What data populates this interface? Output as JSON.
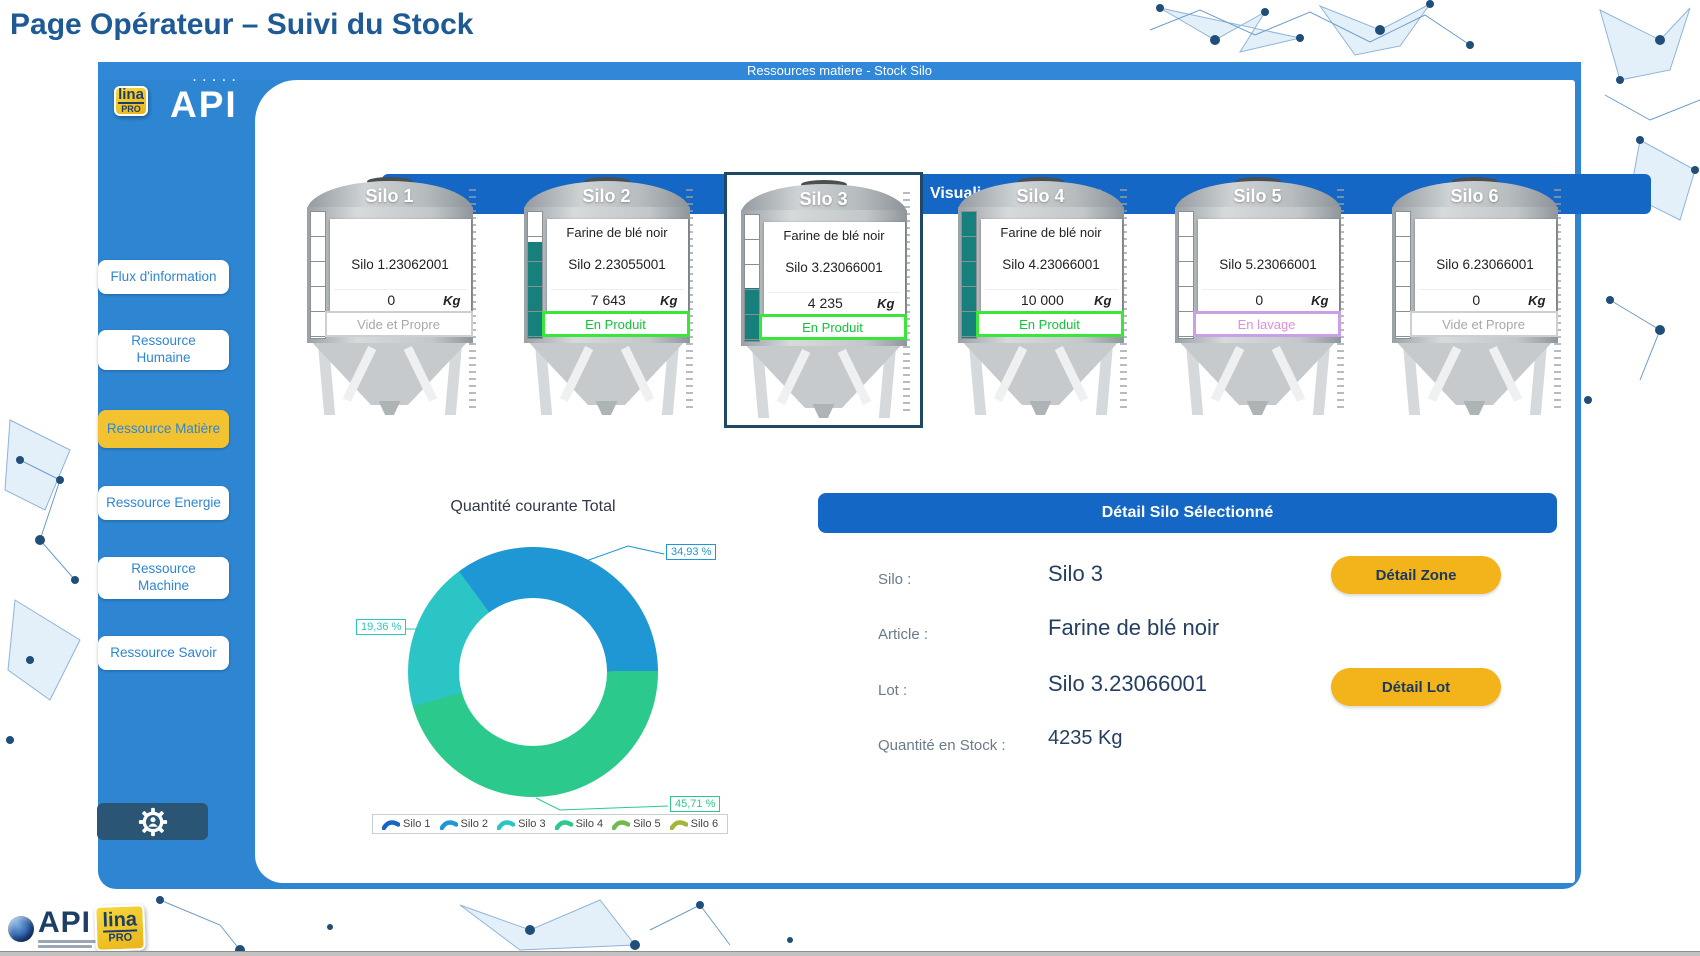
{
  "page_title": "Page Opérateur – Suivi du Stock",
  "panel": {
    "top_bar": "Ressources matiere - Stock Silo",
    "section_header": "Visualisation des Silos"
  },
  "branding": {
    "lina_top": "lina",
    "lina_bottom": "PRO",
    "api": "API"
  },
  "sidebar": {
    "items": [
      {
        "id": "flux-d-information",
        "label": "Flux d'information",
        "active": false
      },
      {
        "id": "ressource-humaine",
        "label": "Ressource\nHumaine",
        "active": false
      },
      {
        "id": "ressource-matiere",
        "label": "Ressource Matière",
        "active": true
      },
      {
        "id": "ressource-energie",
        "label": "Ressource Energie",
        "active": false
      },
      {
        "id": "ressource-machine",
        "label": "Ressource\nMachine",
        "active": false
      },
      {
        "id": "ressource-savoir",
        "label": "Ressource Savoir",
        "active": false
      }
    ]
  },
  "silos": [
    {
      "name": "Silo 1",
      "article": "",
      "lot": "Silo 1.23062001",
      "qty": "0",
      "unit": "Kg",
      "status": "Vide et Propre",
      "status_type": "empty",
      "fill_pct": 0,
      "selected": false
    },
    {
      "name": "Silo 2",
      "article": "Farine de blé noir",
      "lot": "Silo 2.23055001",
      "qty": "7 643",
      "unit": "Kg",
      "status": "En Produit",
      "status_type": "product",
      "fill_pct": 76,
      "selected": false
    },
    {
      "name": "Silo 3",
      "article": "Farine de blé noir",
      "lot": "Silo 3.23066001",
      "qty": "4 235",
      "unit": "Kg",
      "status": "En Produit",
      "status_type": "product",
      "fill_pct": 42,
      "selected": true
    },
    {
      "name": "Silo 4",
      "article": "Farine de blé noir",
      "lot": "Silo 4.23066001",
      "qty": "10 000",
      "unit": "Kg",
      "status": "En Produit",
      "status_type": "product",
      "fill_pct": 100,
      "selected": false
    },
    {
      "name": "Silo 5",
      "article": "",
      "lot": "Silo 5.23066001",
      "qty": "0",
      "unit": "Kg",
      "status": "En lavage",
      "status_type": "wash",
      "fill_pct": 0,
      "selected": false
    },
    {
      "name": "Silo 6",
      "article": "",
      "lot": "Silo 6.23066001",
      "qty": "0",
      "unit": "Kg",
      "status": "Vide et Propre",
      "status_type": "empty",
      "fill_pct": 0,
      "selected": false
    }
  ],
  "chart_data": {
    "type": "pie",
    "donut": true,
    "title": "Quantité courante Total",
    "categories": [
      "Silo 1",
      "Silo 2",
      "Silo 3",
      "Silo 4",
      "Silo 5",
      "Silo 6"
    ],
    "values_pct": [
      0,
      34.93,
      19.36,
      45.71,
      0,
      0
    ],
    "colors": [
      "#1565c4",
      "#1f97d4",
      "#2cc5c5",
      "#2bc98c",
      "#72b94e",
      "#a6b437"
    ],
    "segments": [
      {
        "label": "Silo 2",
        "pct": 34.93,
        "color": "#1f97d4"
      },
      {
        "label": "Silo 4",
        "pct": 45.71,
        "color": "#2bc98c"
      },
      {
        "label": "Silo 3",
        "pct": 19.36,
        "color": "#2cc5c5"
      }
    ],
    "callouts": [
      {
        "text": "34,93 %",
        "color": "#1f97d4",
        "pos": "a"
      },
      {
        "text": "19,36 %",
        "color": "#2cc5c5",
        "pos": "b"
      },
      {
        "text": "45,71 %",
        "color": "#2bc98c",
        "pos": "c"
      }
    ],
    "start_angle_deg": -36.3,
    "legend_position": "bottom"
  },
  "detail": {
    "header": "Détail Silo Sélectionné",
    "silo_label": "Silo :",
    "silo_value": "Silo 3",
    "article_label": "Article :",
    "article_value": "Farine de blé noir",
    "lot_label": "Lot :",
    "lot_value": "Silo 3.23066001",
    "qty_label": "Quantité en Stock :",
    "qty_value": "4235 Kg",
    "zone_button": "Détail Zone",
    "lot_button": "Détail Lot"
  }
}
